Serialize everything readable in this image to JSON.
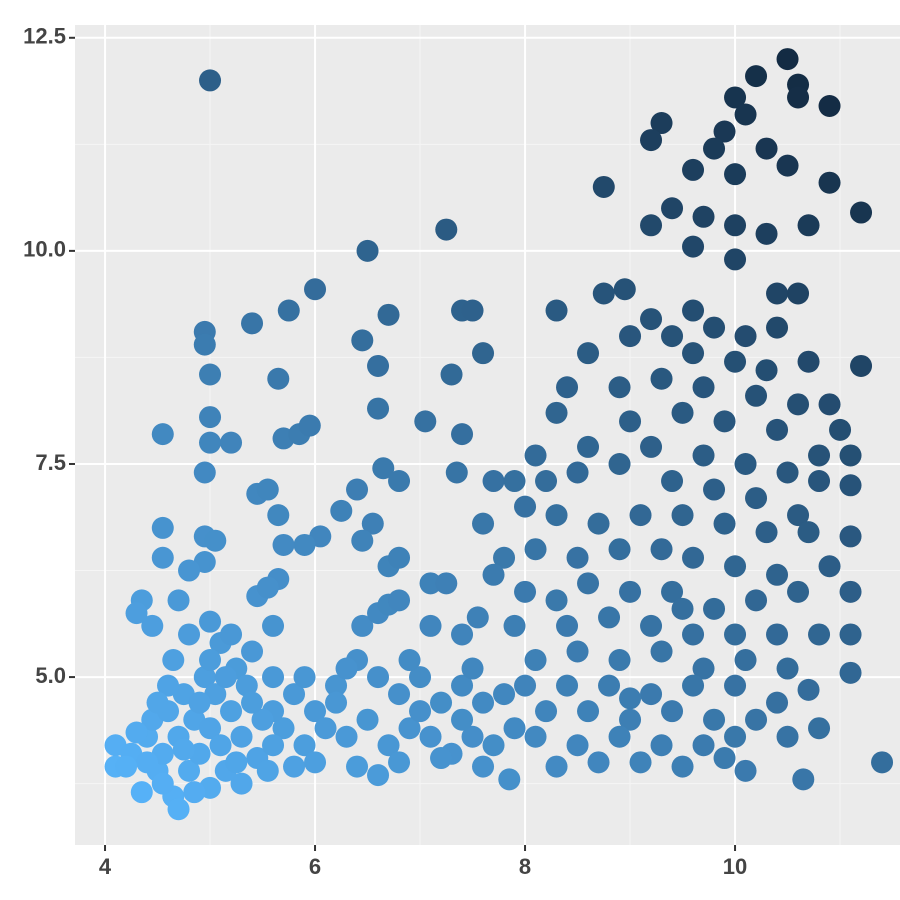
{
  "chart_data": {
    "type": "scatter",
    "x": [
      5.0,
      10.5,
      10.2,
      10.6,
      10.6,
      10.9,
      10.0,
      10.1,
      9.9,
      9.3,
      9.2,
      9.8,
      10.3,
      10.5,
      9.6,
      10.0,
      10.9,
      11.2,
      8.75,
      9.4,
      9.7,
      10.0,
      10.3,
      10.7,
      9.2,
      7.25,
      6.5,
      9.6,
      10.0,
      6.0,
      5.75,
      5.4,
      4.95,
      4.95,
      6.7,
      7.4,
      7.5,
      8.3,
      8.75,
      8.95,
      9.2,
      9.6,
      10.4,
      10.6,
      11.2,
      6.45,
      6.6,
      7.6,
      7.3,
      5.0,
      5.65,
      6.6,
      5.0,
      4.55,
      5.0,
      5.2,
      5.7,
      5.85,
      5.95,
      7.05,
      7.4,
      4.95,
      7.35,
      6.65,
      6.8,
      6.4,
      5.45,
      5.55,
      5.65,
      6.25,
      6.55,
      6.05,
      5.9,
      5.7,
      4.55,
      4.55,
      4.95,
      5.05,
      4.95,
      4.8,
      6.45,
      6.7,
      6.8,
      7.1,
      7.25,
      5.65,
      5.45,
      5.55,
      4.35,
      4.3,
      4.7,
      4.45,
      5.6,
      6.45,
      6.6,
      6.7,
      6.8,
      7.1,
      7.4,
      7.55,
      9.0,
      9.4,
      9.8,
      10.1,
      10.4,
      9.6,
      10.0,
      10.3,
      10.7,
      10.9,
      8.6,
      8.4,
      8.9,
      9.3,
      9.7,
      10.2,
      10.6,
      11.0,
      8.3,
      9.0,
      9.5,
      9.9,
      10.4,
      10.8,
      11.1,
      11.1,
      8.1,
      8.6,
      9.2,
      9.7,
      10.1,
      10.5,
      10.8,
      7.7,
      7.9,
      8.2,
      8.5,
      8.9,
      9.4,
      9.8,
      10.2,
      10.6,
      11.1,
      8.0,
      8.3,
      8.7,
      9.1,
      9.5,
      9.9,
      10.3,
      10.7,
      7.6,
      7.8,
      8.1,
      8.5,
      8.9,
      9.3,
      9.6,
      10.0,
      10.4,
      10.9,
      7.7,
      8.0,
      8.3,
      8.6,
      9.0,
      9.4,
      9.8,
      10.2,
      10.6,
      11.1,
      7.9,
      8.4,
      8.8,
      9.2,
      9.6,
      10.0,
      10.4,
      10.8,
      11.1,
      8.1,
      8.5,
      8.9,
      9.3,
      9.7,
      10.1,
      10.5,
      11.1,
      8.0,
      8.4,
      8.8,
      9.2,
      9.6,
      10.0,
      10.4,
      10.7,
      8.2,
      8.6,
      9.0,
      9.4,
      9.8,
      10.2,
      10.5,
      10.8,
      8.1,
      8.5,
      8.9,
      9.3,
      9.7,
      10.0,
      8.3,
      8.7,
      9.1,
      9.5,
      9.9,
      10.1,
      10.65,
      11.4,
      9.0,
      9.5,
      5.6,
      5.8,
      6.0,
      6.2,
      6.4,
      6.6,
      6.8,
      7.0,
      7.2,
      7.4,
      7.6,
      7.8,
      5.7,
      5.9,
      6.1,
      6.3,
      6.5,
      6.7,
      6.9,
      7.1,
      7.3,
      7.5,
      7.7,
      7.9,
      5.8,
      6.0,
      6.4,
      6.6,
      6.8,
      7.2,
      7.6,
      7.85,
      7.4,
      6.2,
      5.9,
      6.3,
      7.0,
      5.6,
      7.5,
      6.9,
      4.1,
      4.1,
      4.25,
      4.35,
      4.4,
      4.45,
      4.5,
      4.55,
      4.6,
      4.65,
      4.7,
      4.7,
      4.75,
      4.8,
      4.85,
      4.9,
      4.95,
      5.0,
      5.0,
      5.05,
      5.1,
      5.1,
      5.15,
      5.2,
      5.25,
      5.3,
      5.3,
      5.35,
      5.4,
      5.45,
      5.5,
      5.55,
      4.8,
      5.0,
      5.2,
      4.4,
      4.6,
      4.3,
      4.55,
      4.9,
      5.4,
      5.6,
      4.2,
      4.5,
      5.0,
      4.75,
      4.65,
      5.25,
      5.15,
      4.85
    ],
    "values": [
      12.0,
      12.25,
      12.05,
      11.95,
      11.8,
      11.7,
      11.8,
      11.6,
      11.4,
      11.5,
      11.3,
      11.2,
      11.2,
      11.0,
      10.95,
      10.9,
      10.8,
      10.45,
      10.75,
      10.5,
      10.4,
      10.3,
      10.2,
      10.3,
      10.3,
      10.25,
      10.0,
      10.05,
      9.9,
      9.55,
      9.3,
      9.15,
      9.05,
      8.9,
      9.25,
      9.3,
      9.3,
      9.3,
      9.5,
      9.55,
      9.2,
      9.3,
      9.5,
      9.5,
      8.65,
      8.95,
      8.65,
      8.8,
      8.55,
      8.55,
      8.5,
      8.15,
      8.05,
      7.85,
      7.75,
      7.75,
      7.8,
      7.85,
      7.95,
      8.0,
      7.85,
      7.4,
      7.4,
      7.45,
      7.3,
      7.2,
      7.15,
      7.2,
      6.9,
      6.95,
      6.8,
      6.65,
      6.55,
      6.55,
      6.75,
      6.4,
      6.65,
      6.6,
      6.35,
      6.25,
      6.6,
      6.3,
      6.4,
      6.1,
      6.1,
      6.15,
      5.95,
      6.05,
      5.9,
      5.75,
      5.9,
      5.6,
      5.6,
      5.6,
      5.75,
      5.85,
      5.9,
      5.6,
      5.5,
      5.7,
      9.0,
      9.0,
      9.1,
      9.0,
      9.1,
      8.8,
      8.7,
      8.6,
      8.7,
      8.2,
      8.8,
      8.4,
      8.4,
      8.5,
      8.4,
      8.3,
      8.2,
      7.9,
      8.1,
      8.0,
      8.1,
      8.0,
      7.9,
      7.6,
      7.6,
      7.25,
      7.6,
      7.7,
      7.7,
      7.6,
      7.5,
      7.4,
      7.3,
      7.3,
      7.3,
      7.3,
      7.4,
      7.5,
      7.3,
      7.2,
      7.1,
      6.9,
      6.65,
      7.0,
      6.9,
      6.8,
      6.9,
      6.9,
      6.8,
      6.7,
      6.7,
      6.8,
      6.4,
      6.5,
      6.4,
      6.5,
      6.5,
      6.4,
      6.3,
      6.2,
      6.3,
      6.2,
      6.0,
      5.9,
      6.1,
      6.0,
      6.0,
      5.8,
      5.9,
      6.0,
      6.0,
      5.6,
      5.6,
      5.7,
      5.6,
      5.5,
      5.5,
      5.5,
      5.5,
      5.5,
      5.2,
      5.3,
      5.2,
      5.3,
      5.1,
      5.2,
      5.1,
      5.05,
      4.9,
      4.9,
      4.9,
      4.8,
      4.9,
      4.9,
      4.7,
      4.85,
      4.6,
      4.6,
      4.5,
      4.6,
      4.5,
      4.5,
      4.3,
      4.4,
      4.3,
      4.2,
      4.3,
      4.2,
      4.2,
      4.3,
      3.95,
      4.0,
      4.0,
      3.95,
      4.05,
      3.9,
      3.8,
      4.0,
      4.75,
      5.8,
      5.0,
      4.8,
      4.6,
      4.9,
      5.2,
      5.0,
      4.8,
      5.0,
      4.7,
      4.9,
      4.7,
      4.8,
      4.4,
      4.2,
      4.4,
      4.3,
      4.5,
      4.2,
      4.4,
      4.3,
      4.1,
      4.3,
      4.2,
      4.4,
      3.95,
      4.0,
      3.95,
      3.85,
      4.0,
      4.05,
      3.95,
      3.8,
      4.5,
      4.7,
      5.0,
      5.1,
      4.6,
      4.6,
      5.1,
      5.2,
      4.2,
      3.95,
      4.1,
      3.65,
      4.3,
      4.5,
      3.9,
      4.1,
      4.6,
      3.6,
      3.45,
      4.3,
      4.8,
      3.9,
      4.5,
      4.1,
      5.0,
      3.7,
      4.4,
      4.8,
      4.2,
      5.4,
      3.9,
      4.6,
      5.1,
      3.75,
      4.3,
      4.9,
      5.3,
      4.05,
      4.5,
      3.9,
      5.5,
      5.65,
      5.5,
      4.0,
      4.9,
      4.35,
      3.75,
      4.7,
      4.7,
      4.2,
      3.95,
      4.7,
      5.2,
      4.15,
      5.2,
      4.0,
      5.0,
      3.65
    ],
    "color_low": "#56B1F7",
    "color_high": "#132B43",
    "xlim": [
      3.714,
      11.571
    ],
    "xticks": [
      4,
      6,
      8,
      10
    ],
    "xminor": [
      5,
      7,
      9,
      11
    ],
    "ylim": [
      3.03,
      12.65
    ],
    "yticks": [
      {
        "value": 5,
        "label": "5.0"
      },
      7.5,
      {
        "value": 10,
        "label": "10.0"
      },
      12.5
    ],
    "yminor": [
      3.75,
      6.25,
      8.75,
      11.25
    ],
    "grid": true
  }
}
